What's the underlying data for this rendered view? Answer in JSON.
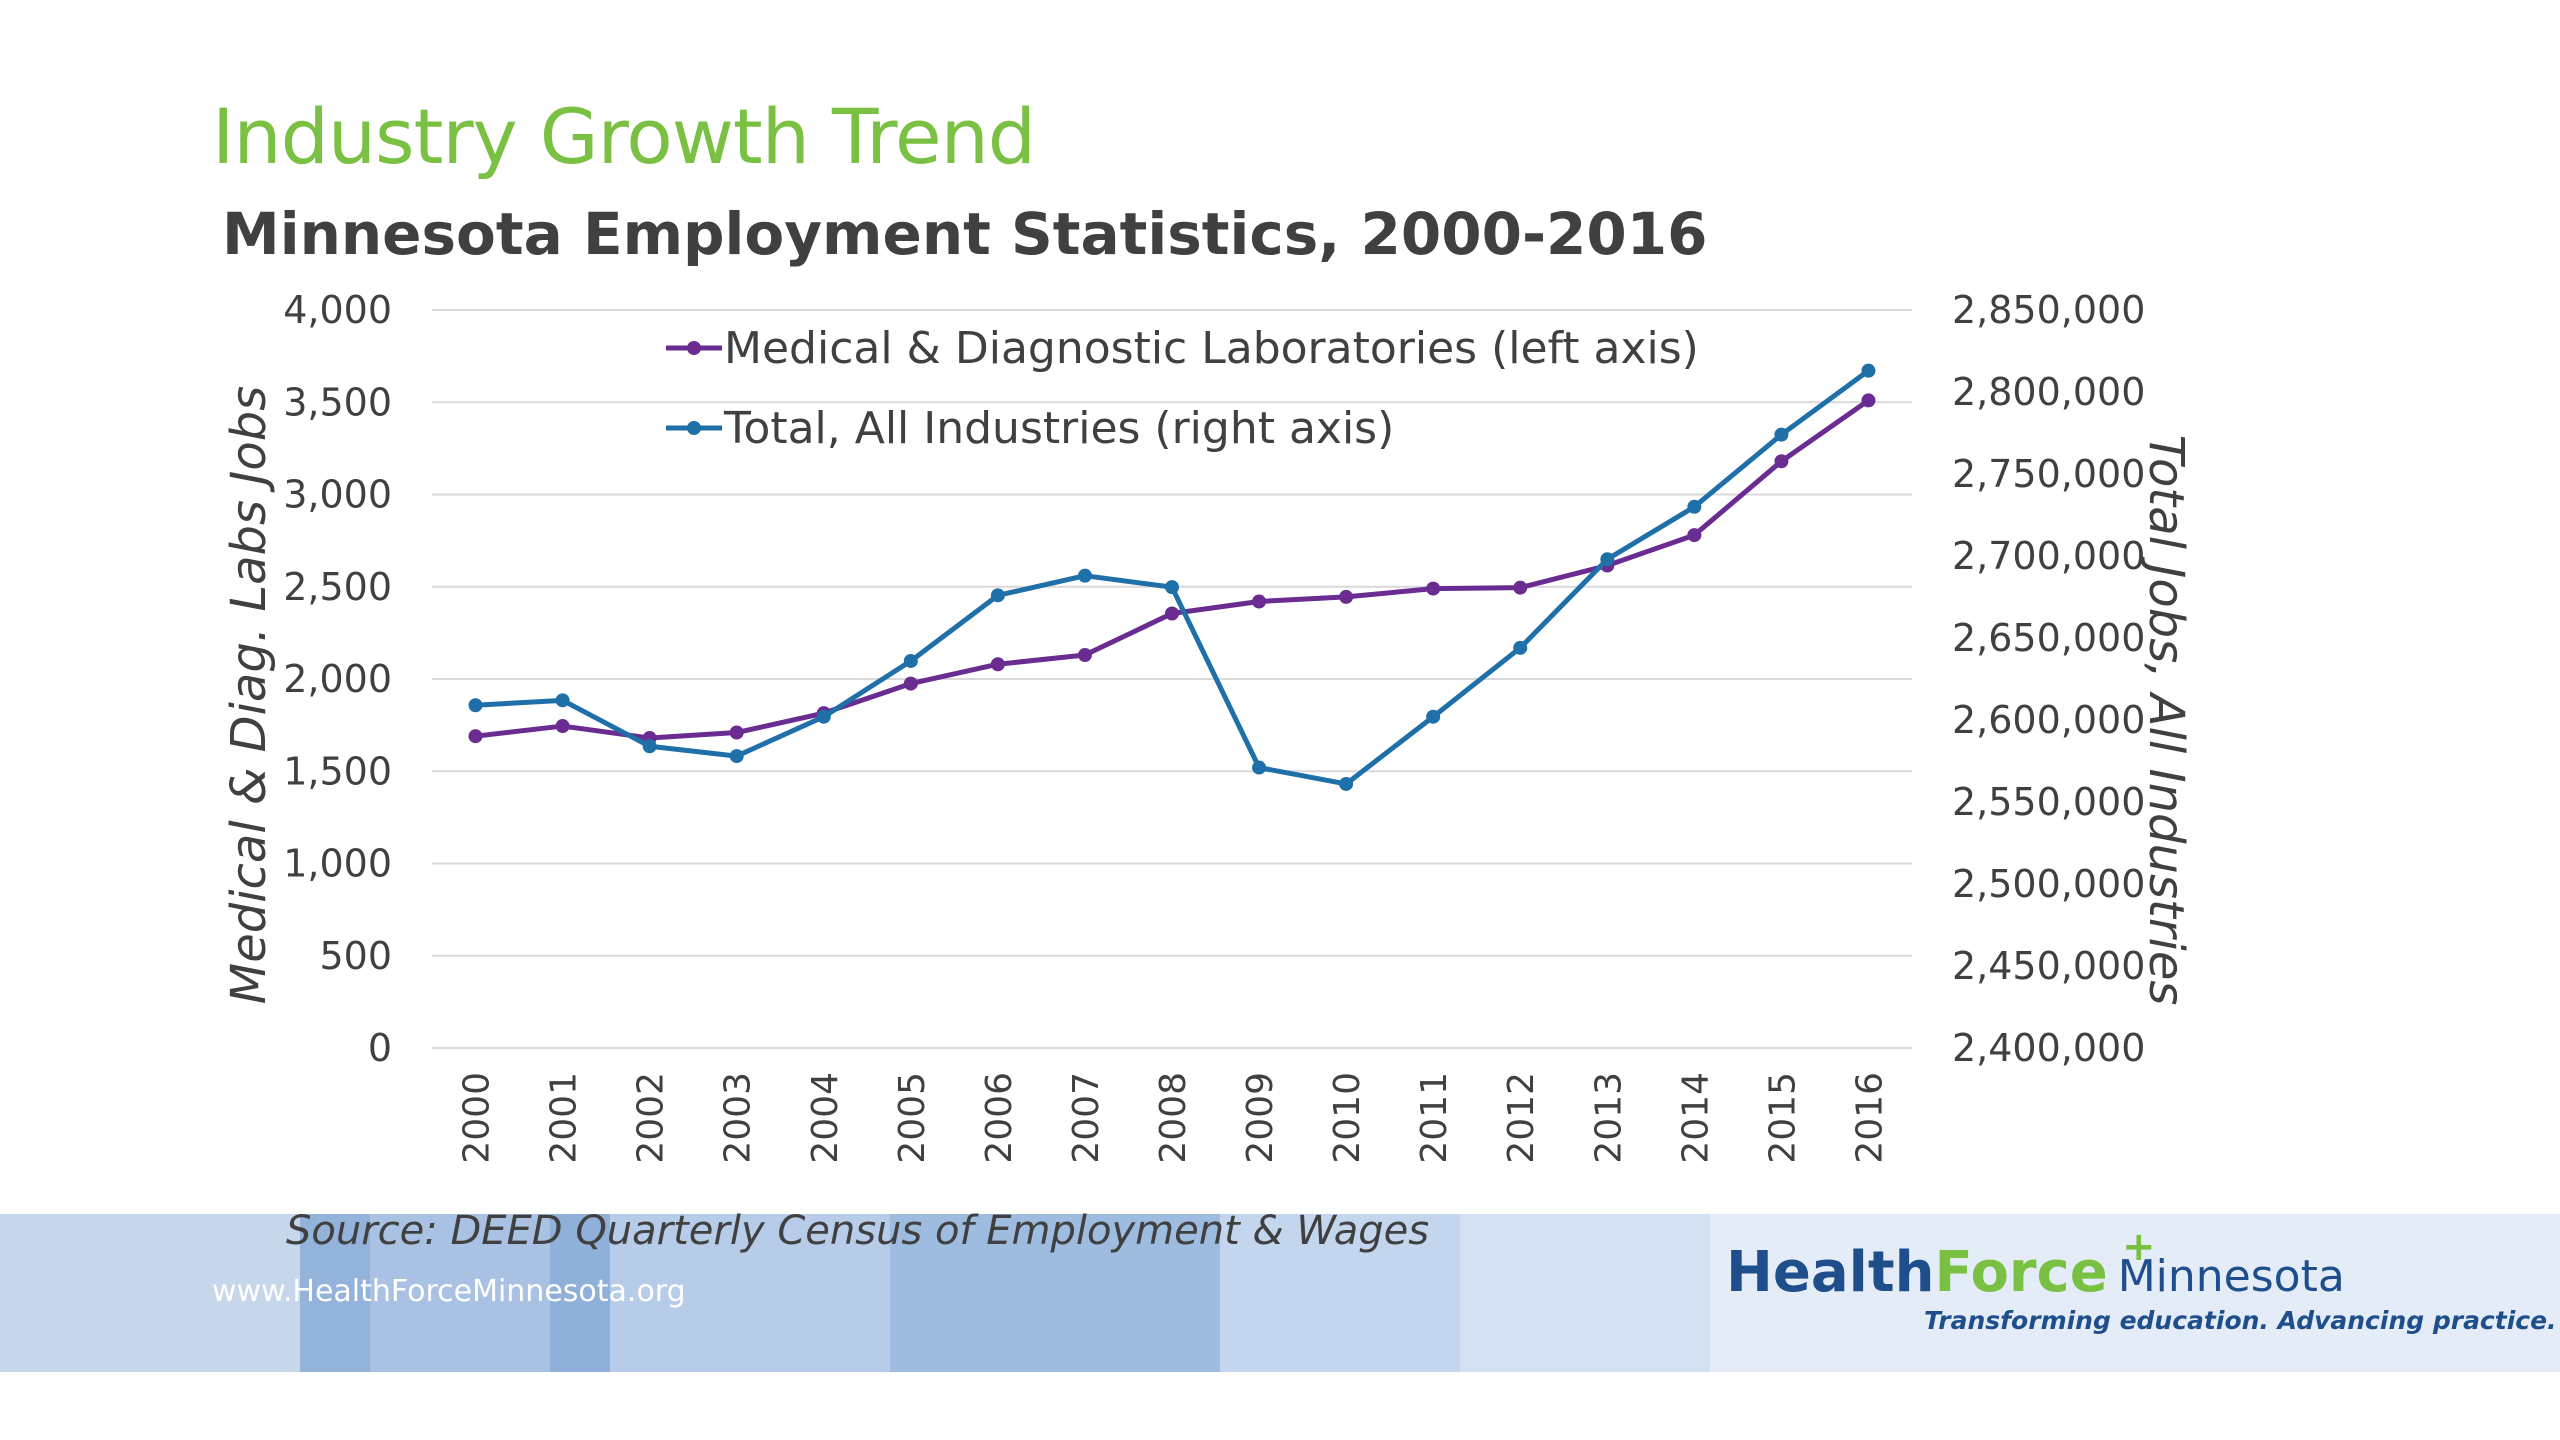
{
  "heading": "Industry Growth Trend",
  "colors": {
    "heading_green": "#7ac143",
    "medical_series": "#6a2c91",
    "total_series": "#1f6fa9",
    "gridline": "#d9d9d9",
    "footer_blues": [
      "#c6d7ec",
      "#93b3da",
      "#a9c2e3",
      "#8fb0d8",
      "#b7cce8",
      "#9ebbe0",
      "#c3d6ee",
      "#d3e1f2",
      "#e4edf7"
    ],
    "logo_blue": "#1f4e8c",
    "logo_green": "#7ac143"
  },
  "chart_data": {
    "type": "line",
    "title": "Minnesota Employment Statistics, 2000-2016",
    "x": [
      "2000",
      "2001",
      "2002",
      "2003",
      "2004",
      "2005",
      "2006",
      "2007",
      "2008",
      "2009",
      "2010",
      "2011",
      "2012",
      "2013",
      "2014",
      "2015",
      "2016"
    ],
    "ylabel_left": "Medical & Diag. Labs Jobs",
    "ylabel_right": "Total Jobs, All Industries",
    "ylim_left": [
      0,
      4000
    ],
    "ylim_right": [
      2400000,
      2850000
    ],
    "yticks_left": [
      "0",
      "500",
      "1,000",
      "1,500",
      "2,000",
      "2,500",
      "3,000",
      "3,500",
      "4,000"
    ],
    "yticks_right": [
      "2,400,000",
      "2,450,000",
      "2,500,000",
      "2,550,000",
      "2,600,000",
      "2,650,000",
      "2,700,000",
      "2,750,000",
      "2,800,000",
      "2,850,000"
    ],
    "grid": "horizontal",
    "legend_position": "top-center",
    "series": [
      {
        "name": "Medical & Diagnostic Laboratories (left axis)",
        "axis": "left",
        "color": "#6a2c91",
        "values": [
          1690,
          1745,
          1680,
          1710,
          1815,
          1975,
          2080,
          2130,
          2355,
          2420,
          2445,
          2490,
          2495,
          2615,
          2780,
          3180,
          3510
        ]
      },
      {
        "name": "Total, All Industries (right axis)",
        "axis": "right",
        "color": "#1f6fa9",
        "values": [
          2609000,
          2612000,
          2584000,
          2578000,
          2602000,
          2636000,
          2676000,
          2688000,
          2681000,
          2571000,
          2561000,
          2602000,
          2644000,
          2698000,
          2730000,
          2774000,
          2813000
        ]
      }
    ]
  },
  "footer": {
    "source": "Source: DEED Quarterly Census of Employment & Wages",
    "website": "www.HealthForceMinnesota.org",
    "logo": {
      "health": "Health",
      "force": "Force",
      "plus": "+",
      "minnesota": "Minnesota",
      "tagline": "Transforming education. Advancing practice."
    }
  }
}
